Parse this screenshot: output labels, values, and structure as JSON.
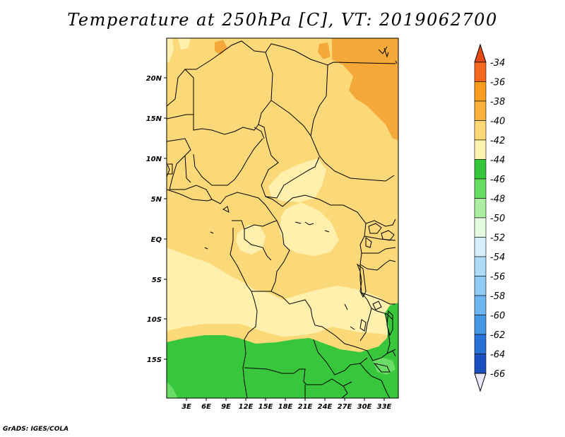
{
  "title": "Temperature at 250hPa [C], VT: 2019062700",
  "credit": "GrADS: IGES/COLA",
  "map": {
    "region": "Central and Southern Africa",
    "x_ticks": [
      "3E",
      "6E",
      "9E",
      "12E",
      "15E",
      "18E",
      "21E",
      "24E",
      "27E",
      "30E",
      "33E"
    ],
    "y_ticks": [
      "20N",
      "15N",
      "10N",
      "5N",
      "EQ",
      "5S",
      "10S",
      "15S"
    ]
  },
  "colorbar": {
    "labels": [
      "-34",
      "-36",
      "-38",
      "-40",
      "-42",
      "-44",
      "-46",
      "-48",
      "-50",
      "-52",
      "-54",
      "-56",
      "-58",
      "-60",
      "-62",
      "-64",
      "-66"
    ],
    "colors": [
      "#e64a16",
      "#f5661e",
      "#f79d1b",
      "#f9b23d",
      "#fbd875",
      "#fef4b0",
      "#36c63c",
      "#67db62",
      "#a9ef9f",
      "#e4fde0",
      "#d6f1ff",
      "#aedbf7",
      "#8ecbf5",
      "#6db4f0",
      "#4896e6",
      "#2a71d6",
      "#1a4fc0",
      "#11258e"
    ],
    "top_arrow_color": "#e64a16",
    "bottom_arrow_color": "#e8e8fa"
  },
  "field_colors": {
    "minus_38": "#f5a93b",
    "minus_40": "#fcd978",
    "minus_42": "#fff1ad",
    "minus_44": "#38c63d",
    "minus_46": "#6bdc66"
  }
}
